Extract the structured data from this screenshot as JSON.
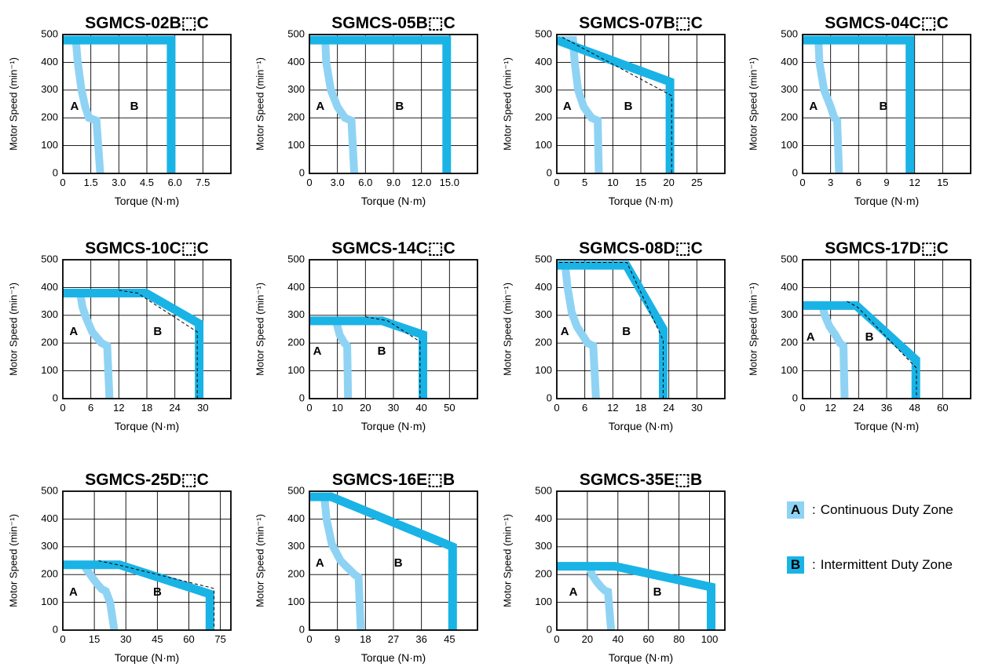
{
  "legend": {
    "a_label": "A",
    "a_text": "Continuous Duty Zone",
    "b_label": "B",
    "b_text": "Intermittent Duty Zone",
    "separator": ":"
  },
  "colors": {
    "continuous": "#8fd3f4",
    "intermittent": "#1ab3e6",
    "dashed_line": "#000000",
    "grid": "#000000"
  },
  "chart_data": [
    {
      "type": "line",
      "title": "SGMCS-02B⬚C",
      "xlabel": "Torque (N·m)",
      "ylabel": "Motor Speed (min⁻¹)",
      "xlim": [
        0,
        9
      ],
      "ylim": [
        0,
        500
      ],
      "xticks": [
        0,
        1.5,
        3.0,
        4.5,
        6.0,
        7.5
      ],
      "xtick_labels": [
        "0",
        "1.5",
        "3.0",
        "4.5",
        "6.0",
        "7.5"
      ],
      "yticks": [
        0,
        100,
        200,
        300,
        400,
        500
      ],
      "zone_a_label": "A",
      "zone_b_label": "B",
      "zone_a_label_pos": [
        0.4,
        240
      ],
      "zone_b_label_pos": [
        3.6,
        240
      ],
      "series": [
        {
          "zone": "continuous",
          "x": [
            0,
            0.7,
            0.8,
            1.0,
            1.2,
            1.4,
            1.8,
            2.0
          ],
          "y": [
            480,
            480,
            400,
            300,
            240,
            200,
            190,
            0
          ]
        },
        {
          "zone": "intermittent",
          "x": [
            0,
            5.8,
            5.8
          ],
          "y": [
            480,
            480,
            0
          ]
        }
      ]
    },
    {
      "type": "line",
      "title": "SGMCS-05B⬚C",
      "xlabel": "Torque (N·m)",
      "ylabel": "Motor Speed (min⁻¹)",
      "xlim": [
        0,
        18
      ],
      "ylim": [
        0,
        500
      ],
      "xticks": [
        0,
        3.0,
        6.0,
        9.0,
        12.0,
        15.0
      ],
      "xtick_labels": [
        "0",
        "3.0",
        "6.0",
        "9.0",
        "12.0",
        "15.0"
      ],
      "yticks": [
        0,
        100,
        200,
        300,
        400,
        500
      ],
      "zone_a_label": "A",
      "zone_b_label": "B",
      "zone_a_label_pos": [
        0.7,
        240
      ],
      "zone_b_label_pos": [
        9.2,
        240
      ],
      "series": [
        {
          "zone": "continuous",
          "x": [
            0,
            1.7,
            1.8,
            2.3,
            3.0,
            3.8,
            4.5,
            4.8
          ],
          "y": [
            480,
            480,
            400,
            300,
            240,
            200,
            190,
            0
          ]
        },
        {
          "zone": "intermittent",
          "x": [
            0,
            14.7,
            14.7
          ],
          "y": [
            480,
            480,
            0
          ]
        }
      ]
    },
    {
      "type": "line",
      "title": "SGMCS-07B⬚C",
      "xlabel": "Torque (N·m)",
      "ylabel": "Motor Speed (min⁻¹)",
      "xlim": [
        0,
        30
      ],
      "ylim": [
        0,
        500
      ],
      "xticks": [
        0,
        5,
        10,
        15,
        20,
        25
      ],
      "xtick_labels": [
        "0",
        "5",
        "10",
        "15",
        "20",
        "25"
      ],
      "yticks": [
        0,
        100,
        200,
        300,
        400,
        500
      ],
      "zone_a_label": "A",
      "zone_b_label": "B",
      "zone_a_label_pos": [
        1.1,
        240
      ],
      "zone_b_label_pos": [
        12.0,
        240
      ],
      "series": [
        {
          "zone": "continuous",
          "x": [
            0,
            2.9,
            3.2,
            3.8,
            4.8,
            6.2,
            7.3,
            7.5
          ],
          "y": [
            480,
            480,
            400,
            300,
            240,
            200,
            190,
            0
          ]
        },
        {
          "zone": "intermittent",
          "x": [
            0,
            20.2,
            20.2
          ],
          "y": [
            480,
            330,
            0
          ]
        },
        {
          "zone": "dashed",
          "x": [
            1,
            20.5,
            20.5
          ],
          "y": [
            490,
            280,
            0
          ]
        }
      ]
    },
    {
      "type": "line",
      "title": "SGMCS-04C⬚C",
      "xlabel": "Torque (N·m)",
      "ylabel": "Motor Speed (min⁻¹)",
      "xlim": [
        0,
        18
      ],
      "ylim": [
        0,
        500
      ],
      "xticks": [
        0,
        3,
        6,
        9,
        12,
        15
      ],
      "xtick_labels": [
        "0",
        "3",
        "6",
        "9",
        "12",
        "15"
      ],
      "yticks": [
        0,
        100,
        200,
        300,
        400,
        500
      ],
      "zone_a_label": "A",
      "zone_b_label": "B",
      "zone_a_label_pos": [
        0.7,
        240
      ],
      "zone_b_label_pos": [
        8.2,
        240
      ],
      "series": [
        {
          "zone": "continuous",
          "x": [
            0,
            1.7,
            1.8,
            2.3,
            3.0,
            3.4,
            3.7,
            3.9
          ],
          "y": [
            480,
            480,
            400,
            300,
            240,
            200,
            190,
            0
          ]
        },
        {
          "zone": "intermittent",
          "x": [
            0,
            11.5,
            11.5
          ],
          "y": [
            480,
            480,
            0
          ]
        }
      ]
    },
    {
      "type": "line",
      "title": "SGMCS-10C⬚C",
      "xlabel": "Torque (N·m)",
      "ylabel": "Motor Speed (min⁻¹)",
      "xlim": [
        0,
        36
      ],
      "ylim": [
        0,
        500
      ],
      "xticks": [
        0,
        6,
        12,
        18,
        24,
        30
      ],
      "xtick_labels": [
        "0",
        "6",
        "12",
        "18",
        "24",
        "30"
      ],
      "yticks": [
        0,
        100,
        200,
        300,
        400,
        500
      ],
      "zone_a_label": "A",
      "zone_b_label": "B",
      "zone_a_label_pos": [
        1.4,
        240
      ],
      "zone_b_label_pos": [
        19.4,
        240
      ],
      "series": [
        {
          "zone": "continuous",
          "x": [
            0,
            3.7,
            4.2,
            5.0,
            6.3,
            8.3,
            9.5,
            10.0
          ],
          "y": [
            380,
            380,
            330,
            290,
            240,
            200,
            190,
            0
          ]
        },
        {
          "zone": "intermittent",
          "x": [
            0,
            17.8,
            29.2,
            29.2
          ],
          "y": [
            380,
            380,
            270,
            0
          ]
        },
        {
          "zone": "dashed",
          "x": [
            12,
            16,
            28.8,
            28.8
          ],
          "y": [
            390,
            380,
            240,
            0
          ]
        }
      ]
    },
    {
      "type": "line",
      "title": "SGMCS-14C⬚C",
      "xlabel": "Torque (N·m)",
      "ylabel": "Motor Speed (min⁻¹)",
      "xlim": [
        0,
        60
      ],
      "ylim": [
        0,
        500
      ],
      "xticks": [
        0,
        10,
        20,
        30,
        40,
        50
      ],
      "xtick_labels": [
        "0",
        "10",
        "20",
        "30",
        "40",
        "50"
      ],
      "yticks": [
        0,
        100,
        200,
        300,
        400,
        500
      ],
      "zone_a_label": "A",
      "zone_b_label": "B",
      "zone_a_label_pos": [
        1.3,
        170
      ],
      "zone_b_label_pos": [
        24.3,
        170
      ],
      "series": [
        {
          "zone": "continuous",
          "x": [
            0,
            9.5,
            10.0,
            10.8,
            12.5,
            13.5,
            13.8
          ],
          "y": [
            280,
            280,
            260,
            230,
            200,
            190,
            0
          ]
        },
        {
          "zone": "intermittent",
          "x": [
            0,
            26.0,
            40.5,
            40.5
          ],
          "y": [
            280,
            280,
            230,
            0
          ]
        },
        {
          "zone": "dashed",
          "x": [
            20,
            28,
            39.5,
            39.5
          ],
          "y": [
            295,
            280,
            205,
            0
          ]
        }
      ]
    },
    {
      "type": "line",
      "title": "SGMCS-08D⬚C",
      "xlabel": "Torque (N·m)",
      "ylabel": "Motor Speed (min⁻¹)",
      "xlim": [
        0,
        36
      ],
      "ylim": [
        0,
        500
      ],
      "xticks": [
        0,
        6,
        12,
        18,
        24,
        30
      ],
      "xtick_labels": [
        "0",
        "6",
        "12",
        "18",
        "24",
        "30"
      ],
      "yticks": [
        0,
        100,
        200,
        300,
        400,
        500
      ],
      "zone_a_label": "A",
      "zone_b_label": "B",
      "zone_a_label_pos": [
        0.8,
        240
      ],
      "zone_b_label_pos": [
        14.0,
        240
      ],
      "series": [
        {
          "zone": "continuous",
          "x": [
            0,
            1.8,
            2.3,
            3.2,
            4.3,
            6.6,
            7.8,
            8.4
          ],
          "y": [
            480,
            480,
            400,
            310,
            260,
            200,
            190,
            0
          ]
        },
        {
          "zone": "intermittent",
          "x": [
            0,
            14.9,
            22.8,
            22.8
          ],
          "y": [
            480,
            480,
            250,
            0
          ]
        },
        {
          "zone": "dashed",
          "x": [
            0.5,
            15.0,
            22.8,
            22.8
          ],
          "y": [
            490,
            490,
            210,
            0
          ]
        }
      ]
    },
    {
      "type": "line",
      "title": "SGMCS-17D⬚C",
      "xlabel": "Torque (N·m)",
      "ylabel": "Motor Speed (min⁻¹)",
      "xlim": [
        0,
        72
      ],
      "ylim": [
        0,
        500
      ],
      "xticks": [
        0,
        12,
        24,
        36,
        48,
        60
      ],
      "xtick_labels": [
        "0",
        "12",
        "24",
        "36",
        "48",
        "60"
      ],
      "yticks": [
        0,
        100,
        200,
        300,
        400,
        500
      ],
      "zone_a_label": "A",
      "zone_b_label": "B",
      "zone_a_label_pos": [
        1.6,
        220
      ],
      "zone_b_label_pos": [
        26.8,
        220
      ],
      "series": [
        {
          "zone": "continuous",
          "x": [
            0,
            8.5,
            9.5,
            11.5,
            14.0,
            16.0,
            17.5,
            18.0
          ],
          "y": [
            335,
            335,
            300,
            260,
            230,
            200,
            190,
            0
          ]
        },
        {
          "zone": "intermittent",
          "x": [
            0,
            23.0,
            48.5,
            48.5
          ],
          "y": [
            335,
            335,
            140,
            0
          ]
        },
        {
          "zone": "dashed",
          "x": [
            19,
            23.5,
            48.8,
            48.8
          ],
          "y": [
            350,
            330,
            110,
            0
          ]
        }
      ]
    },
    {
      "type": "line",
      "title": "SGMCS-25D⬚C",
      "xlabel": "Torque (N·m)",
      "ylabel": "Motor Speed (min⁻¹)",
      "xlim": [
        0,
        80
      ],
      "ylim": [
        0,
        500
      ],
      "xticks": [
        0,
        15,
        30,
        45,
        60,
        75
      ],
      "xtick_labels": [
        "0",
        "15",
        "30",
        "45",
        "60",
        "75"
      ],
      "yticks": [
        0,
        100,
        200,
        300,
        400,
        500
      ],
      "zone_a_label": "A",
      "zone_b_label": "B",
      "zone_a_label_pos": [
        3.0,
        135
      ],
      "zone_b_label_pos": [
        43.0,
        135
      ],
      "series": [
        {
          "zone": "continuous",
          "x": [
            0,
            10.0,
            11.2,
            14.0,
            16.5,
            18.5,
            20.5,
            22.5,
            24.5
          ],
          "y": [
            235,
            235,
            220,
            190,
            165,
            148,
            140,
            100,
            0
          ]
        },
        {
          "zone": "intermittent",
          "x": [
            0,
            27.0,
            70.0,
            70.0
          ],
          "y": [
            235,
            235,
            130,
            0
          ]
        },
        {
          "zone": "dashed",
          "x": [
            17.0,
            29.0,
            72.0,
            72.0
          ],
          "y": [
            250,
            230,
            150,
            0
          ]
        }
      ]
    },
    {
      "type": "line",
      "title": "SGMCS-16E⬚B",
      "xlabel": "Torque (N·m)",
      "ylabel": "Motor Speed (min⁻¹)",
      "xlim": [
        0,
        54
      ],
      "ylim": [
        0,
        500
      ],
      "xticks": [
        0,
        9,
        18,
        27,
        36,
        45
      ],
      "xtick_labels": [
        "0",
        "9",
        "18",
        "27",
        "36",
        "45"
      ],
      "yticks": [
        0,
        100,
        200,
        300,
        400,
        500
      ],
      "zone_a_label": "A",
      "zone_b_label": "B",
      "zone_a_label_pos": [
        2.0,
        240
      ],
      "zone_b_label_pos": [
        27.2,
        240
      ],
      "series": [
        {
          "zone": "continuous",
          "x": [
            0,
            4.8,
            5.5,
            7.2,
            10.0,
            14.5,
            15.8,
            16.5
          ],
          "y": [
            480,
            480,
            400,
            310,
            250,
            200,
            190,
            0
          ]
        },
        {
          "zone": "intermittent",
          "x": [
            0,
            7.0,
            46.0,
            46.0
          ],
          "y": [
            480,
            480,
            300,
            0
          ]
        }
      ]
    },
    {
      "type": "line",
      "title": "SGMCS-35E⬚B",
      "xlabel": "Torque (N·m)",
      "ylabel": "Motor Speed (min⁻¹)",
      "xlim": [
        0,
        110
      ],
      "ylim": [
        0,
        500
      ],
      "xticks": [
        0,
        20,
        40,
        60,
        80,
        100
      ],
      "xtick_labels": [
        "0",
        "20",
        "40",
        "60",
        "80",
        "100"
      ],
      "yticks": [
        0,
        100,
        200,
        300,
        400,
        500
      ],
      "zone_a_label": "A",
      "zone_b_label": "B",
      "zone_a_label_pos": [
        8.0,
        135
      ],
      "zone_b_label_pos": [
        63.0,
        135
      ],
      "series": [
        {
          "zone": "continuous",
          "x": [
            0,
            21.5,
            23.0,
            26.0,
            29.0,
            31.5,
            33.5,
            35.5
          ],
          "y": [
            230,
            230,
            200,
            175,
            155,
            142,
            138,
            0
          ]
        },
        {
          "zone": "intermittent",
          "x": [
            0,
            38.0,
            101.0,
            101.0
          ],
          "y": [
            230,
            230,
            155,
            0
          ]
        }
      ]
    }
  ]
}
